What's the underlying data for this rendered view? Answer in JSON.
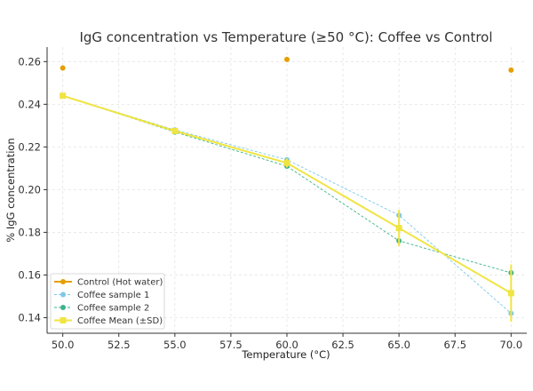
{
  "chart_data": {
    "type": "line",
    "title": "IgG concentration vs Temperature (≥50 °C): Coffee vs Control",
    "xlabel": "Temperature (°C)",
    "ylabel": "% IgG concentration",
    "xlim": [
      49.3,
      70.7
    ],
    "ylim": [
      0.1327,
      0.2668
    ],
    "xticks": [
      50.0,
      52.5,
      55.0,
      57.5,
      60.0,
      62.5,
      65.0,
      67.5,
      70.0
    ],
    "xtick_labels": [
      "50.0",
      "52.5",
      "55.0",
      "57.5",
      "60.0",
      "62.5",
      "65.0",
      "67.5",
      "70.0"
    ],
    "yticks": [
      0.14,
      0.16,
      0.18,
      0.2,
      0.22,
      0.24,
      0.26
    ],
    "ytick_labels": [
      "0.14",
      "0.16",
      "0.18",
      "0.20",
      "0.22",
      "0.24",
      "0.26"
    ],
    "grid": true,
    "legend_position": "lower-left",
    "series": [
      {
        "name": "Control (Hot water)",
        "color": "#E69F00",
        "style": "solid",
        "marker": "circle",
        "x": [
          50,
          60,
          70
        ],
        "y": [
          0.257,
          0.261,
          0.256
        ],
        "show_line": false
      },
      {
        "name": "Coffee sample 1",
        "color": "#7EC8E8",
        "style": "dashed",
        "marker": "circle",
        "x": [
          50,
          55,
          60,
          65,
          70
        ],
        "y": [
          0.244,
          0.228,
          0.214,
          0.188,
          0.142
        ]
      },
      {
        "name": "Coffee sample 2",
        "color": "#3DB48A",
        "style": "dashed",
        "marker": "circle",
        "x": [
          50,
          55,
          60,
          65,
          70
        ],
        "y": [
          0.244,
          0.227,
          0.211,
          0.176,
          0.161
        ]
      },
      {
        "name": "Coffee Mean (±SD)",
        "color": "#F0E442",
        "style": "solid",
        "marker": "square",
        "x": [
          50,
          55,
          60,
          65,
          70
        ],
        "y": [
          0.244,
          0.2275,
          0.2125,
          0.182,
          0.1515
        ],
        "sd": [
          0.0,
          0.0007,
          0.0021,
          0.0085,
          0.0134
        ]
      }
    ]
  }
}
